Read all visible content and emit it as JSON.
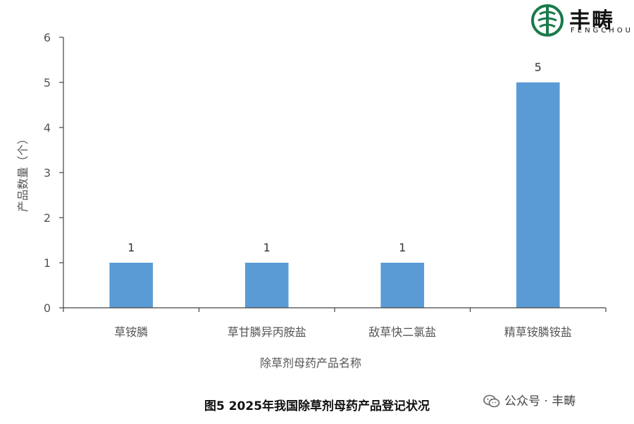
{
  "chart_data": {
    "type": "bar",
    "title": "",
    "xlabel": "除草剂母药产品名称",
    "ylabel": "产品数量（个）",
    "categories": [
      "草铵膦",
      "草甘膦异丙胺盐",
      "敌草快二氯盐",
      "精草铵膦铵盐"
    ],
    "values": [
      1,
      1,
      1,
      5
    ],
    "data_labels": [
      "1",
      "1",
      "1",
      "5"
    ],
    "ylim": [
      0,
      6
    ],
    "yticks": [
      "0",
      "1",
      "2",
      "3",
      "4",
      "5",
      "6"
    ],
    "grid": false,
    "bar_color": "#5b9bd5"
  },
  "caption": "图5 2025年我国除草剂母药产品登记状况",
  "logo": {
    "name": "丰畴",
    "subtitle": "FENGCHOU",
    "icon": "fengchou-logo-icon"
  },
  "watermark": {
    "text": "公众号 · 丰畴",
    "icon": "wechat-icon"
  }
}
